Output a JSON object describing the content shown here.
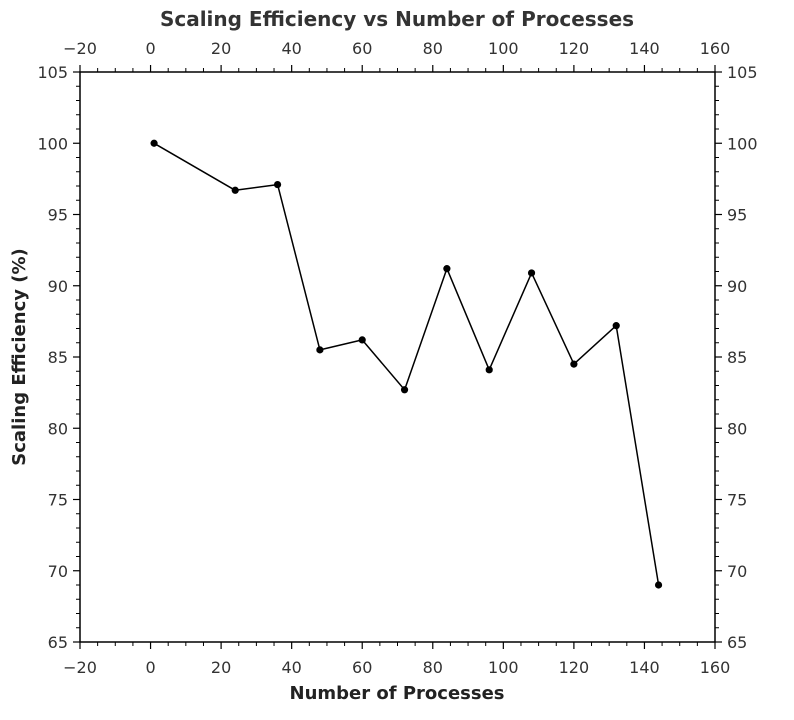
{
  "chart_data": {
    "type": "line",
    "title": "Scaling Efficiency vs Number of Processes",
    "xlabel": "Number of Processes",
    "ylabel": "Scaling Efficiency (%)",
    "xlim": [
      -20,
      160
    ],
    "ylim": [
      65,
      105
    ],
    "x_ticks": [
      -20,
      0,
      20,
      40,
      60,
      80,
      100,
      120,
      140,
      160
    ],
    "y_ticks": [
      65,
      70,
      75,
      80,
      85,
      90,
      95,
      100,
      105
    ],
    "x_tick_labels": [
      "−20",
      "0",
      "20",
      "40",
      "60",
      "80",
      "100",
      "120",
      "140",
      "160"
    ],
    "y_tick_labels": [
      "65",
      "70",
      "75",
      "80",
      "85",
      "90",
      "95",
      "100",
      "105"
    ],
    "x_minor_step": 5,
    "y_minor_step": 1,
    "mirror_axes": true,
    "grid": false,
    "series": [
      {
        "x": [
          1,
          24,
          36,
          48,
          60,
          72,
          84,
          96,
          108,
          120,
          132,
          144
        ],
        "y": [
          100.0,
          96.7,
          97.1,
          85.5,
          86.2,
          82.7,
          91.2,
          84.1,
          90.9,
          84.5,
          87.2,
          69.0
        ],
        "color": "#000000"
      }
    ]
  }
}
